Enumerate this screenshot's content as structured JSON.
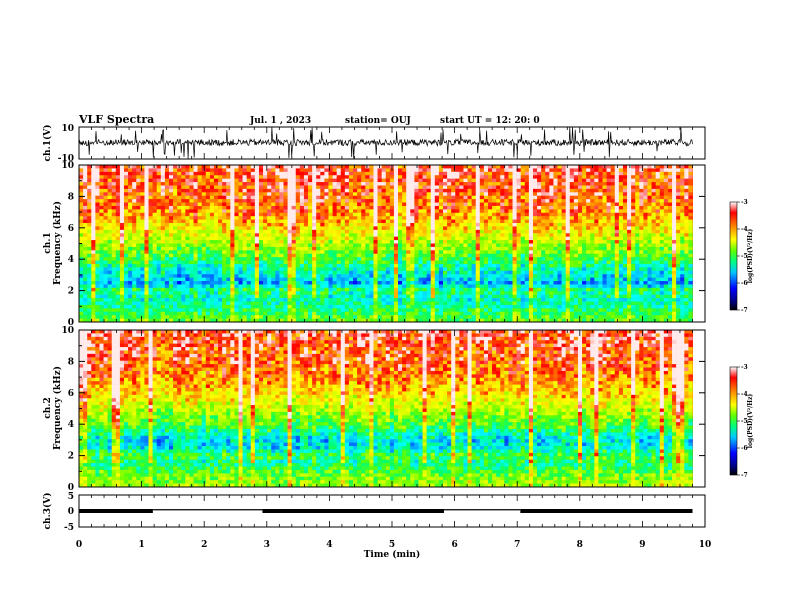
{
  "header": {
    "title": "VLF Spectra",
    "date": "Jul. 1 , 2023",
    "station": "station= OUJ",
    "start": "start UT = 12: 20: 0"
  },
  "colors": {
    "spectrum_scale": [
      "#000080",
      "#0000ff",
      "#00a0ff",
      "#00ffff",
      "#00ff70",
      "#60ff00",
      "#c8ff00",
      "#ffff00",
      "#ff9600",
      "#ff0000",
      "#ffffff"
    ],
    "waveform": "#000000",
    "background": "#ffffff"
  },
  "chart_data": [
    {
      "type": "line",
      "panel": "ch1-waveform",
      "ylabel": "ch.1(V)",
      "ylim": [
        -10,
        10
      ],
      "yticks": [
        "10",
        "-10"
      ],
      "xlim": [
        0,
        10
      ],
      "description_free": true,
      "series": [
        {
          "values_summary": {
            "baseline": 0.3,
            "typical_spread": 2.0,
            "spike_max": 10,
            "spike_min": -10
          }
        }
      ]
    },
    {
      "type": "heatmap",
      "panel": "ch1-spectrogram",
      "ylabel": "ch.1\nFrequency (kHz)",
      "ylabel_line1": "ch.1",
      "ylabel_line2": "Frequency (kHz)",
      "ylim": [
        0,
        10
      ],
      "yticks": [
        "0",
        "2",
        "4",
        "6",
        "8",
        "10"
      ],
      "xlim": [
        0,
        9.8
      ],
      "colorbar": {
        "label": "log(PSD)(V²/Hz)",
        "range": [
          -7,
          -3
        ],
        "ticks": [
          "-3",
          "-4",
          "-5",
          "-6",
          "-7"
        ]
      },
      "profile": [
        {
          "f": 0.0,
          "logpsd": -4.8
        },
        {
          "f": 0.5,
          "logpsd": -5.0
        },
        {
          "f": 1.0,
          "logpsd": -5.3
        },
        {
          "f": 1.5,
          "logpsd": -5.5
        },
        {
          "f": 2.0,
          "logpsd": -5.2
        },
        {
          "f": 2.5,
          "logpsd": -5.9
        },
        {
          "f": 3.0,
          "logpsd": -5.6
        },
        {
          "f": 3.5,
          "logpsd": -5.4
        },
        {
          "f": 4.0,
          "logpsd": -5.0
        },
        {
          "f": 5.0,
          "logpsd": -4.5
        },
        {
          "f": 6.0,
          "logpsd": -4.0
        },
        {
          "f": 7.0,
          "logpsd": -3.6
        },
        {
          "f": 8.0,
          "logpsd": -3.4
        },
        {
          "f": 10.0,
          "logpsd": -3.2
        }
      ]
    },
    {
      "type": "heatmap",
      "panel": "ch2-spectrogram",
      "ylabel_line1": "ch.2",
      "ylabel_line2": "Frequency (kHz)",
      "ylim": [
        0,
        10
      ],
      "yticks": [
        "0",
        "2",
        "4",
        "6",
        "8",
        "10"
      ],
      "xlim": [
        0,
        9.8
      ],
      "colorbar": {
        "label": "log(PSD)(V²/Hz)",
        "range": [
          -7,
          -3
        ],
        "ticks": [
          "-3",
          "-4",
          "-5",
          "-6",
          "-7"
        ]
      },
      "profile": [
        {
          "f": 0.0,
          "logpsd": -4.5
        },
        {
          "f": 0.5,
          "logpsd": -4.7
        },
        {
          "f": 1.0,
          "logpsd": -4.9
        },
        {
          "f": 1.5,
          "logpsd": -5.3
        },
        {
          "f": 2.0,
          "logpsd": -5.0
        },
        {
          "f": 2.5,
          "logpsd": -5.6
        },
        {
          "f": 3.0,
          "logpsd": -5.7
        },
        {
          "f": 3.5,
          "logpsd": -5.3
        },
        {
          "f": 4.0,
          "logpsd": -4.9
        },
        {
          "f": 5.0,
          "logpsd": -4.4
        },
        {
          "f": 6.0,
          "logpsd": -3.9
        },
        {
          "f": 7.0,
          "logpsd": -3.6
        },
        {
          "f": 8.0,
          "logpsd": -3.4
        },
        {
          "f": 10.0,
          "logpsd": -3.2
        }
      ]
    },
    {
      "type": "line",
      "panel": "ch3-level",
      "ylabel": "ch.3(V)",
      "ylim": [
        -5,
        5
      ],
      "yticks": [
        "5",
        "0",
        "-5"
      ],
      "xlim": [
        0,
        10
      ],
      "levels": [
        {
          "x0": 0.0,
          "x1": 1.18,
          "y": 0.0
        },
        {
          "x0": 1.18,
          "x1": 2.93,
          "y": 0.4
        },
        {
          "x0": 2.93,
          "x1": 5.83,
          "y": 0.0
        },
        {
          "x0": 5.83,
          "x1": 7.05,
          "y": 0.4
        },
        {
          "x0": 7.05,
          "x1": 9.8,
          "y": 0.0
        }
      ]
    }
  ],
  "xaxis": {
    "label": "Time (min)",
    "range": [
      0,
      10
    ],
    "ticks": [
      "0",
      "1",
      "2",
      "3",
      "4",
      "5",
      "6",
      "7",
      "8",
      "9",
      "10"
    ]
  }
}
